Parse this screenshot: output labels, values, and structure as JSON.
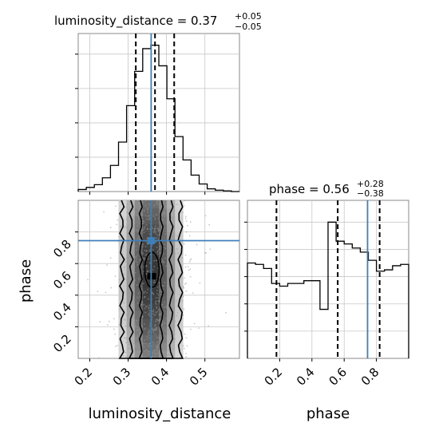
{
  "chart_data": {
    "type": "corner",
    "parameters": [
      "luminosity_distance",
      "phase"
    ],
    "truth": {
      "luminosity_distance": 0.36,
      "phase": 0.745
    },
    "colors": {
      "truth": "#3f7fb7",
      "hist": "#000000",
      "grid": "#c8c8c8"
    },
    "marginals": [
      {
        "parameter": "luminosity_distance",
        "title": "luminosity_distance = 0.37",
        "title_sup": "+0.05",
        "title_sub": "−0.05",
        "quantiles": [
          0.32,
          0.37,
          0.42
        ],
        "xlim": [
          0.17,
          0.59
        ],
        "hist_edges": [
          0.17,
          0.191,
          0.212,
          0.233,
          0.254,
          0.275,
          0.296,
          0.317,
          0.338,
          0.359,
          0.38,
          0.401,
          0.422,
          0.443,
          0.464,
          0.485,
          0.506,
          0.527,
          0.548,
          0.569,
          0.59
        ],
        "hist_counts": [
          0.3,
          0.6,
          1.0,
          2.0,
          3.8,
          7.2,
          12.5,
          17.5,
          20.8,
          21.3,
          18.3,
          13.5,
          8.0,
          4.6,
          2.4,
          1.1,
          0.4,
          0.2,
          0.1,
          0
        ],
        "ymax": 23
      },
      {
        "parameter": "phase",
        "title": "phase = 0.56",
        "title_sup": "+0.28",
        "title_sub": "−0.38",
        "quantiles": [
          0.18,
          0.56,
          0.82
        ],
        "xlim": [
          0.0,
          1.0
        ],
        "xticks": [
          "0.2",
          "0.4",
          "0.6",
          "0.8"
        ],
        "hist_edges": [
          0.0,
          0.05,
          0.1,
          0.15,
          0.2,
          0.25,
          0.3,
          0.35,
          0.4,
          0.45,
          0.5,
          0.55,
          0.6,
          0.65,
          0.7,
          0.75,
          0.8,
          0.85,
          0.9,
          0.95,
          1.0
        ],
        "hist_counts": [
          3.5,
          3.45,
          3.3,
          2.75,
          2.65,
          2.75,
          2.75,
          2.85,
          2.85,
          1.8,
          5.0,
          4.3,
          4.2,
          4.05,
          3.9,
          3.6,
          3.2,
          3.25,
          3.4,
          3.45
        ],
        "ymax": 5.8
      }
    ],
    "joint": {
      "x": "luminosity_distance",
      "y": "phase",
      "xlim": [
        0.17,
        0.59
      ],
      "ylim": [
        0.0,
        1.0
      ],
      "xticks": [
        "0.2",
        "0.3",
        "0.4",
        "0.5"
      ],
      "yticks": [
        "0.2",
        "0.4",
        "0.6",
        "0.8"
      ],
      "density_peak": [
        0.36,
        0.53
      ],
      "contour_levels": [
        "39%",
        "86%",
        "98.9%"
      ]
    },
    "xlabel_left": "luminosity_distance",
    "xlabel_right": "phase",
    "ylabel": "phase"
  }
}
